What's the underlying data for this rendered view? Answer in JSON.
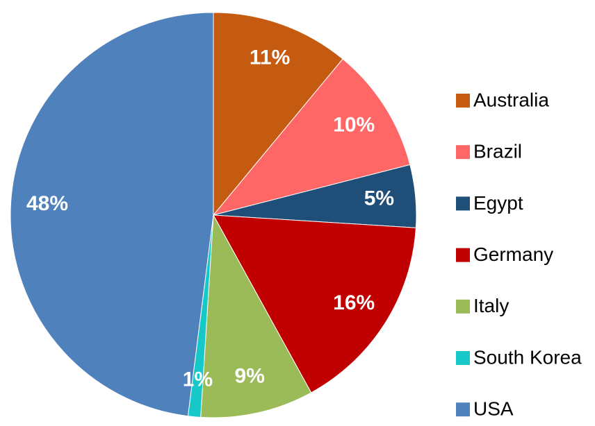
{
  "chart_data": {
    "type": "pie",
    "categories": [
      "Australia",
      "Brazil",
      "Egypt",
      "Germany",
      "Italy",
      "South Korea",
      "USA"
    ],
    "values": [
      11,
      10,
      5,
      16,
      9,
      1,
      48
    ],
    "value_labels": [
      "11%",
      "10%",
      "5%",
      "16%",
      "9%",
      "1%",
      "48%"
    ],
    "colors": [
      "#c55a11",
      "#ff6666",
      "#1f4e79",
      "#c00000",
      "#9bbb59",
      "#17c8c8",
      "#4f81bd"
    ],
    "legend": "right"
  }
}
